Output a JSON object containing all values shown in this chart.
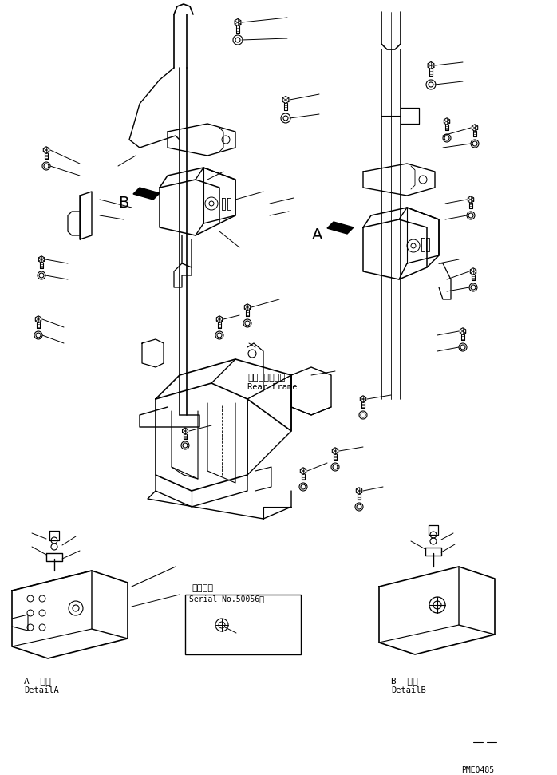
{
  "bg_color": "#ffffff",
  "line_color": "#000000",
  "fig_width": 6.98,
  "fig_height": 9.71,
  "dpi": 100,
  "label_rear_frame_jp": "リヤーフレーム",
  "label_rear_frame_en": "Rear Frame",
  "label_serial_jp": "適用号機",
  "label_serial_en": "Serial No.50056～",
  "label_detail_a_jp": "A  詳細",
  "label_detail_a_en": "DetailA",
  "label_detail_b_jp": "B  詳細",
  "label_detail_b_en": "DetailB",
  "label_pme": "PME0485",
  "label_A": "A",
  "label_B": "B"
}
